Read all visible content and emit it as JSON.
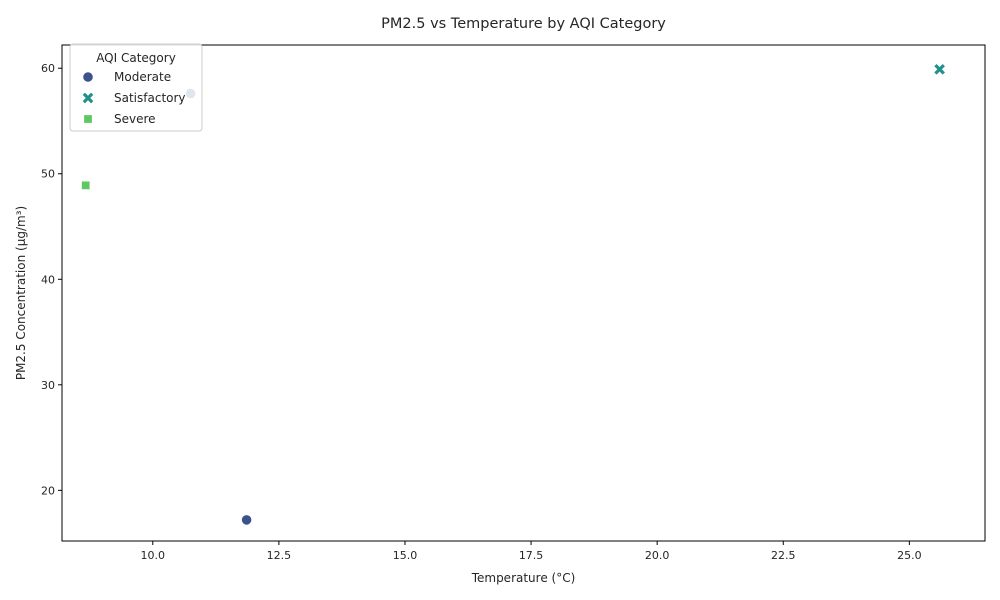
{
  "chart_data": {
    "type": "scatter",
    "title": "PM2.5 vs Temperature by AQI Category",
    "xlabel": "Temperature (°C)",
    "ylabel": "PM2.5 Concentration (µg/m³)",
    "xlim": [
      8.2,
      26.5
    ],
    "ylim": [
      15.2,
      62.2
    ],
    "xticks": [
      "10.0",
      "12.5",
      "15.0",
      "17.5",
      "20.0",
      "22.5",
      "25.0"
    ],
    "yticks": [
      "20",
      "30",
      "40",
      "50",
      "60"
    ],
    "grid": false,
    "legend": {
      "title": "AQI Category",
      "position": "top-left"
    },
    "series": [
      {
        "name": "Moderate",
        "marker": "circle",
        "color": "#3b528b",
        "points": [
          {
            "x": 10.75,
            "y": 57.6
          },
          {
            "x": 11.86,
            "y": 17.2
          }
        ]
      },
      {
        "name": "Satisfactory",
        "marker": "x",
        "color": "#21918c",
        "points": [
          {
            "x": 25.6,
            "y": 59.9
          }
        ]
      },
      {
        "name": "Severe",
        "marker": "square",
        "color": "#5ec962",
        "points": [
          {
            "x": 8.67,
            "y": 48.9
          }
        ]
      }
    ]
  }
}
